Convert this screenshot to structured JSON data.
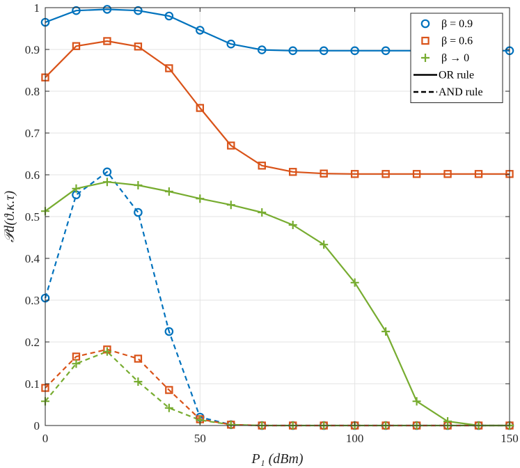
{
  "chart_data": {
    "type": "line",
    "xlabel": "P₁ (dBm)",
    "ylabel": "𝒫d(ϑ.κ.τ)",
    "xlim": [
      0,
      150
    ],
    "ylim": [
      0,
      1
    ],
    "xticks": [
      0,
      50,
      100,
      150
    ],
    "yticks": [
      0,
      0.1,
      0.2,
      0.3,
      0.4,
      0.5,
      0.6,
      0.7,
      0.8,
      0.9,
      1
    ],
    "ytick_labels": [
      "0",
      "0.1",
      "0.2",
      "0.3",
      "0.4",
      "0.5",
      "0.6",
      "0.7",
      "0.8",
      "0.9",
      "1"
    ],
    "xtick_labels": [
      "0",
      "50",
      "100",
      "150"
    ],
    "grid": true,
    "legend_position": "top-right",
    "x": [
      0,
      10,
      20,
      30,
      40,
      50,
      60,
      70,
      80,
      90,
      100,
      110,
      120,
      130,
      140,
      150
    ],
    "series": [
      {
        "name": "β = 0.9",
        "rule": "OR",
        "color": "#0072BD",
        "marker": "circle",
        "dash": "solid",
        "values": [
          0.965,
          0.993,
          0.996,
          0.993,
          0.98,
          0.946,
          0.913,
          0.899,
          0.897,
          0.897,
          0.897,
          0.897,
          0.897,
          0.897,
          0.897,
          0.897
        ]
      },
      {
        "name": "β = 0.6",
        "rule": "OR",
        "color": "#D95319",
        "marker": "square",
        "dash": "solid",
        "values": [
          0.833,
          0.908,
          0.92,
          0.907,
          0.855,
          0.76,
          0.67,
          0.622,
          0.607,
          0.603,
          0.602,
          0.602,
          0.602,
          0.602,
          0.602,
          0.602
        ]
      },
      {
        "name": "β → 0",
        "rule": "OR",
        "color": "#77AC30",
        "marker": "plus",
        "dash": "solid",
        "values": [
          0.513,
          0.567,
          0.583,
          0.575,
          0.56,
          0.543,
          0.528,
          0.51,
          0.48,
          0.433,
          0.342,
          0.225,
          0.058,
          0.01,
          0.0,
          0.0
        ]
      },
      {
        "name": "β = 0.9",
        "rule": "AND",
        "color": "#0072BD",
        "marker": "circle",
        "dash": "dashed",
        "values": [
          0.305,
          0.552,
          0.607,
          0.51,
          0.225,
          0.02,
          0.002,
          0.0,
          0.0,
          0.0,
          0.0,
          0.0,
          0.0,
          0.0,
          0.0,
          0.0
        ]
      },
      {
        "name": "β = 0.6",
        "rule": "AND",
        "color": "#D95319",
        "marker": "square",
        "dash": "dashed",
        "values": [
          0.09,
          0.165,
          0.182,
          0.16,
          0.085,
          0.015,
          0.002,
          0.0,
          0.0,
          0.0,
          0.0,
          0.0,
          0.0,
          0.0,
          0.0,
          0.0
        ]
      },
      {
        "name": "β → 0",
        "rule": "AND",
        "color": "#77AC30",
        "marker": "plus",
        "dash": "dashed",
        "values": [
          0.058,
          0.148,
          0.177,
          0.105,
          0.042,
          0.013,
          0.002,
          0.0,
          0.0,
          0.0,
          0.0,
          0.0,
          0.0,
          0.0,
          0.0,
          0.0
        ]
      }
    ],
    "legend": [
      {
        "label": "β = 0.9",
        "color": "#0072BD",
        "marker": "circle",
        "line": "none"
      },
      {
        "label": "β = 0.6",
        "color": "#D95319",
        "marker": "square",
        "line": "none"
      },
      {
        "label": "β → 0",
        "color": "#77AC30",
        "marker": "plus",
        "line": "none"
      },
      {
        "label": "OR rule",
        "color": "#000000",
        "marker": "none",
        "line": "solid"
      },
      {
        "label": "AND rule",
        "color": "#000000",
        "marker": "none",
        "line": "dashed"
      }
    ]
  }
}
